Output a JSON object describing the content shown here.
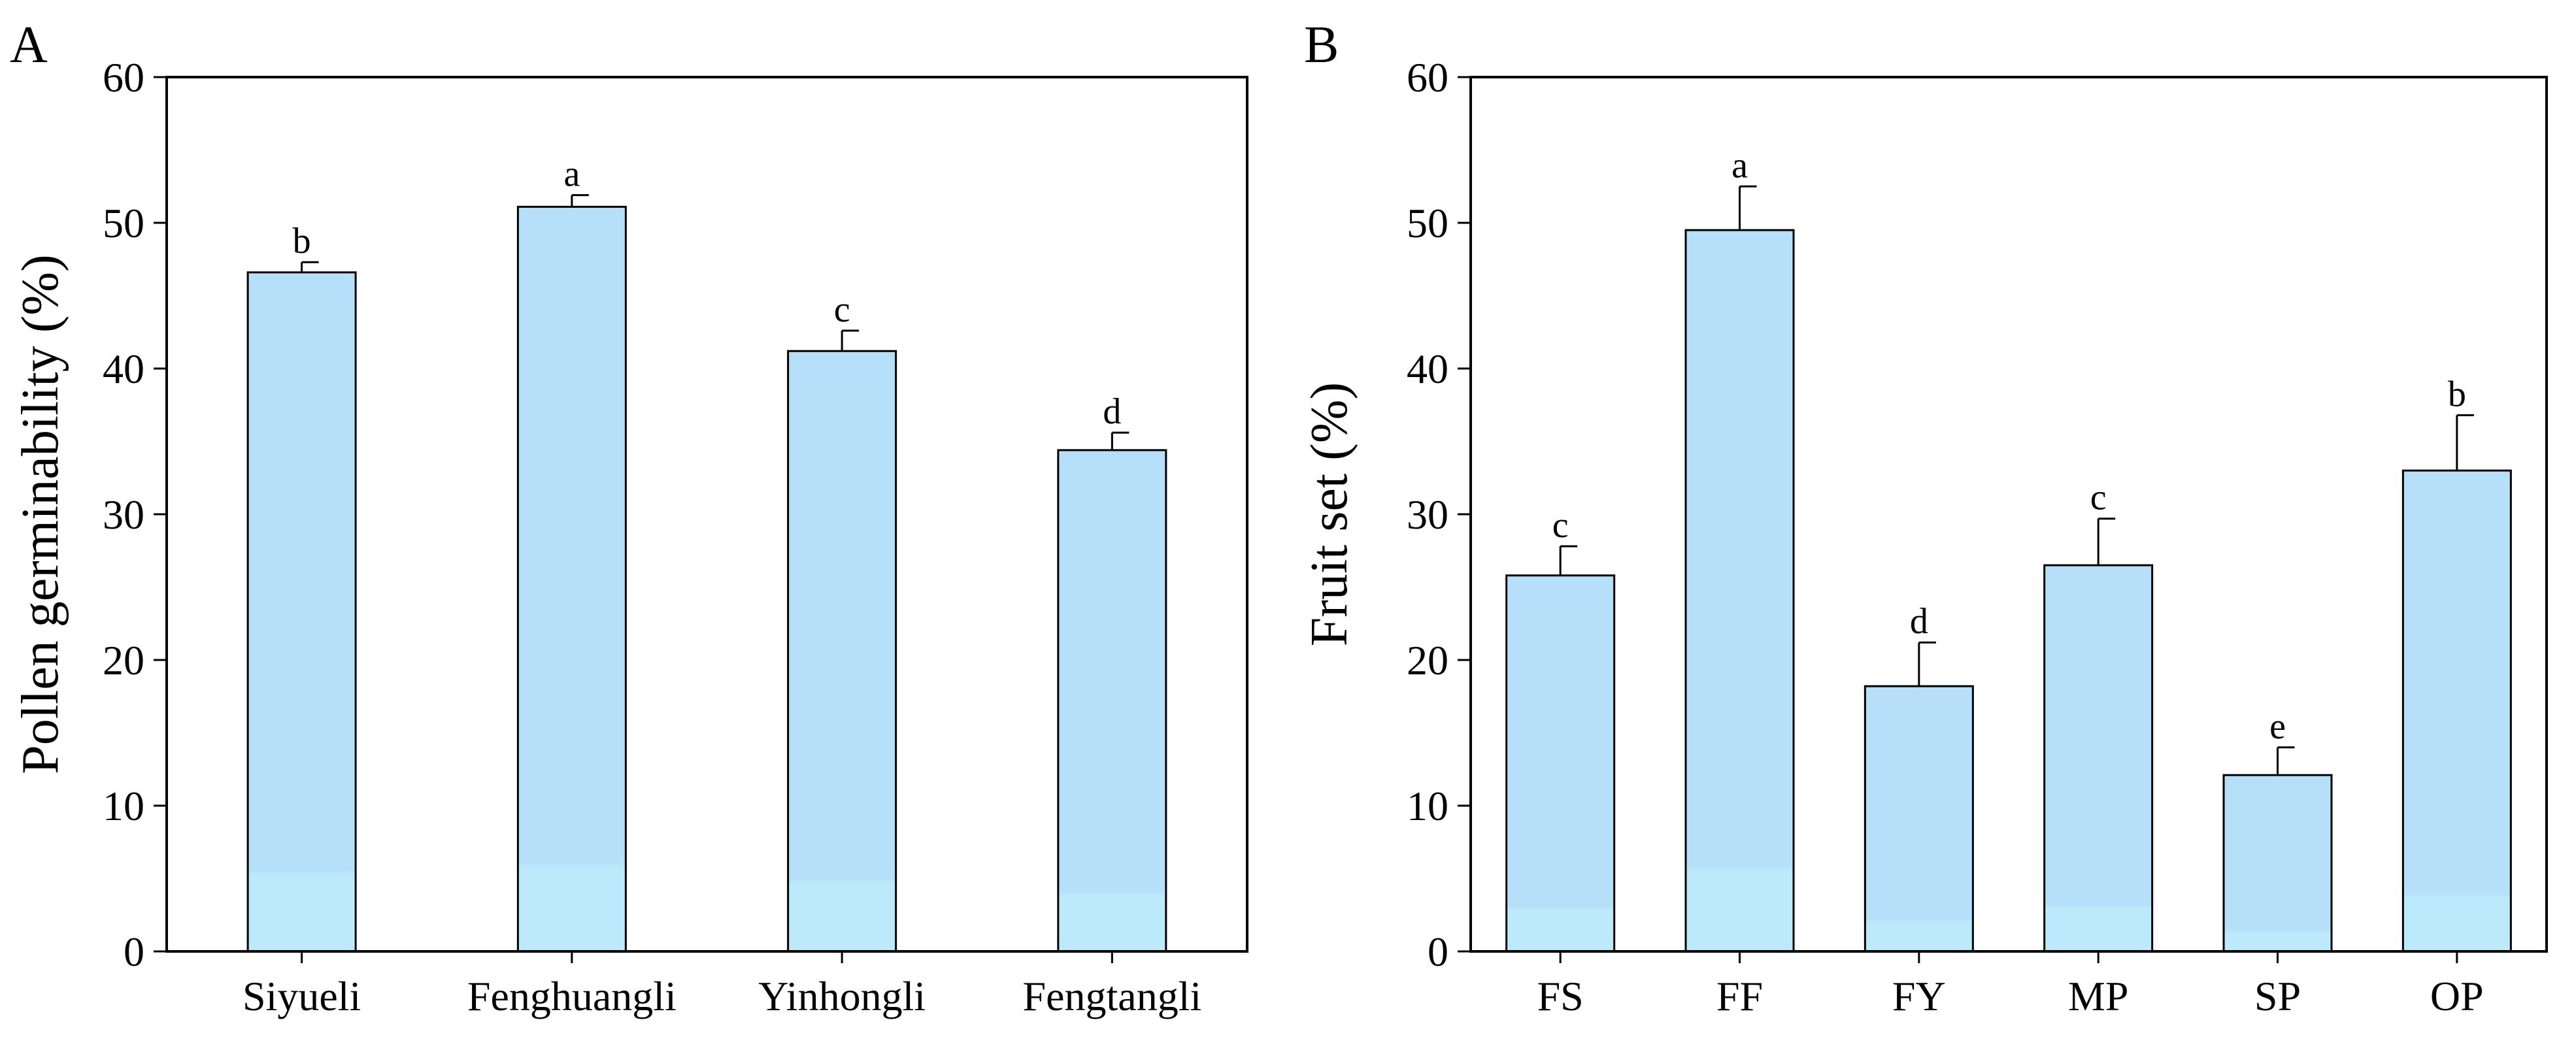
{
  "colors": {
    "bar_fill": "#b6e0fa",
    "bar_fill_bottom": "#bdeafb",
    "bar_stroke": "#000000",
    "axis": "#000000"
  },
  "chart_data": [
    {
      "type": "bar",
      "panel_label": "A",
      "title": "",
      "xlabel": "",
      "ylabel": "Pollen germinability (%)",
      "ylim": [
        0,
        60
      ],
      "yticks": [
        0,
        10,
        20,
        30,
        40,
        50,
        60
      ],
      "grid": false,
      "categories": [
        "Siyueli",
        "Fenghuangli",
        "Yinhongli",
        "Fengtangli"
      ],
      "values": [
        46.6,
        51.1,
        41.2,
        34.4
      ],
      "errors": [
        0.7,
        0.8,
        1.4,
        1.2
      ],
      "significance": [
        "b",
        "a",
        "c",
        "d"
      ]
    },
    {
      "type": "bar",
      "panel_label": "B",
      "title": "",
      "xlabel": "",
      "ylabel": "Fruit set (%)",
      "ylim": [
        0,
        60
      ],
      "yticks": [
        0,
        10,
        20,
        30,
        40,
        50,
        60
      ],
      "grid": false,
      "categories": [
        "FS",
        "FF",
        "FY",
        "MP",
        "SP",
        "OP"
      ],
      "values": [
        25.8,
        49.5,
        18.2,
        26.5,
        12.1,
        33.0
      ],
      "errors": [
        2.0,
        3.0,
        3.0,
        3.2,
        1.9,
        3.8
      ],
      "significance": [
        "c",
        "a",
        "d",
        "c",
        "e",
        "b"
      ]
    }
  ]
}
